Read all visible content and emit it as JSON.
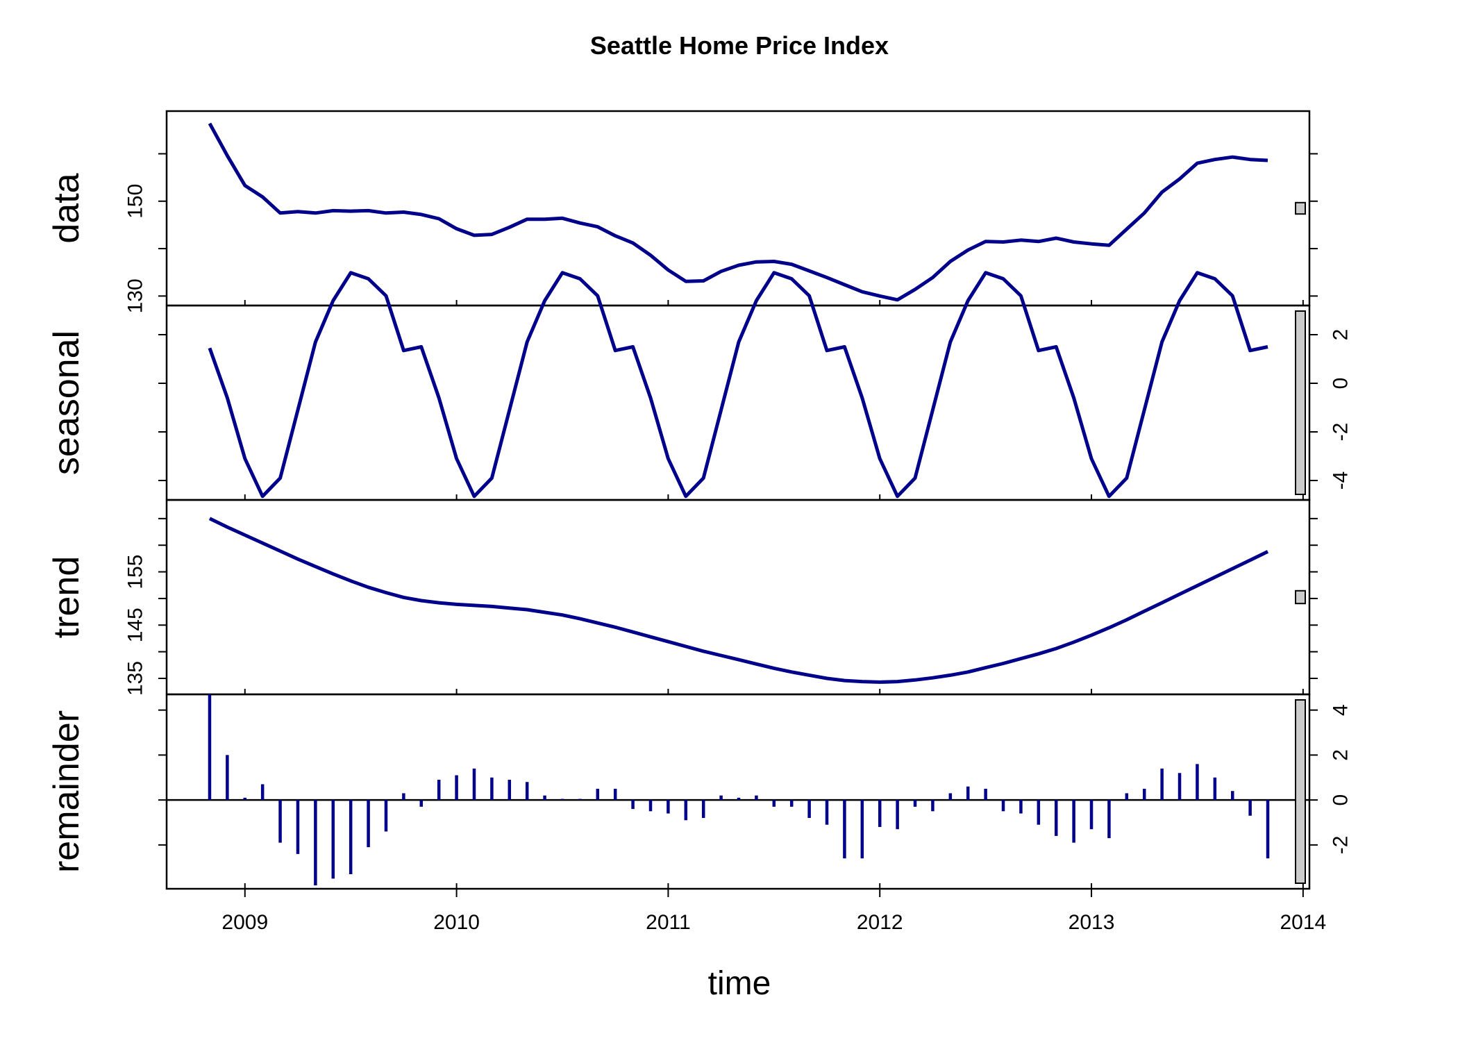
{
  "chart_data": {
    "type": "line",
    "title": "Seattle Home Price Index",
    "xlabel": "time",
    "xlim": [
      2008.63,
      2014.03
    ],
    "x_ticks": [
      "2009",
      "2010",
      "2011",
      "2012",
      "2013",
      "2014"
    ],
    "x_tick_values": [
      2009,
      2010,
      2011,
      2012,
      2013,
      2014
    ],
    "x_start": 2008.8333,
    "x_step": 0.0833333,
    "line_color": "#00008b",
    "range_bar_color": "#cccccc",
    "panels": [
      {
        "name": "data",
        "type": "line",
        "ylim": [
          128,
          169
        ],
        "y_ticks": [
          "130",
          "150"
        ],
        "y_tick_values": [
          130,
          150
        ],
        "y_minor_ticks": [
          130,
          140,
          150,
          160
        ],
        "axis_side": "left",
        "values": [
          166.4,
          159.6,
          153.3,
          150.9,
          147.5,
          147.8,
          147.5,
          148.0,
          147.9,
          148.0,
          147.5,
          147.7,
          147.2,
          146.3,
          144.2,
          142.8,
          143.0,
          144.5,
          146.2,
          146.2,
          146.4,
          145.4,
          144.6,
          142.7,
          141.2,
          138.6,
          135.5,
          133.1,
          133.2,
          135.2,
          136.5,
          137.2,
          137.3,
          136.7,
          135.3,
          133.9,
          132.4,
          130.9,
          130.0,
          129.2,
          131.4,
          133.9,
          137.3,
          139.7,
          141.5,
          141.4,
          141.8,
          141.5,
          142.2,
          141.4,
          141.0,
          140.7,
          144.1,
          147.5,
          151.9,
          154.7,
          158.0,
          158.8,
          159.3,
          158.8,
          158.6
        ]
      },
      {
        "name": "seasonal",
        "type": "line",
        "ylim": [
          -4.8,
          3.2
        ],
        "y_ticks": [
          "-4",
          "-2",
          "0",
          "2"
        ],
        "y_tick_values": [
          -4,
          -2,
          0,
          2
        ],
        "axis_side": "right",
        "values": [
          1.45,
          -0.6,
          -3.1,
          -4.65,
          -3.9,
          -1.1,
          1.7,
          3.4,
          4.55,
          4.3,
          3.6,
          1.35,
          1.5,
          -0.6,
          -3.1,
          -4.65,
          -3.9,
          -1.1,
          1.7,
          3.4,
          4.55,
          4.3,
          3.6,
          1.35,
          1.5,
          -0.6,
          -3.1,
          -4.65,
          -3.9,
          -1.1,
          1.7,
          3.4,
          4.55,
          4.3,
          3.6,
          1.35,
          1.5,
          -0.6,
          -3.1,
          -4.65,
          -3.9,
          -1.1,
          1.7,
          3.4,
          4.55,
          4.3,
          3.6,
          1.35,
          1.5,
          -0.6,
          -3.1,
          -4.65,
          -3.9,
          -1.1,
          1.7,
          3.4,
          4.55,
          4.3,
          3.6,
          1.35,
          1.5
        ]
      },
      {
        "name": "trend",
        "type": "line",
        "ylim": [
          132,
          168.5
        ],
        "y_ticks": [
          "135",
          "145",
          "155"
        ],
        "y_tick_values": [
          135,
          145,
          155
        ],
        "y_minor_ticks": [
          135,
          140,
          145,
          150,
          155,
          160,
          165
        ],
        "axis_side": "left",
        "values": [
          165.0,
          163.4,
          161.9,
          160.4,
          158.9,
          157.4,
          156.0,
          154.6,
          153.3,
          152.1,
          151.1,
          150.2,
          149.6,
          149.2,
          148.9,
          148.7,
          148.5,
          148.2,
          147.9,
          147.4,
          146.9,
          146.2,
          145.4,
          144.6,
          143.7,
          142.8,
          141.9,
          141.0,
          140.1,
          139.3,
          138.5,
          137.7,
          136.9,
          136.2,
          135.6,
          135.0,
          134.6,
          134.4,
          134.3,
          134.4,
          134.7,
          135.1,
          135.6,
          136.2,
          137.0,
          137.8,
          138.7,
          139.6,
          140.6,
          141.8,
          143.1,
          144.5,
          146.0,
          147.6,
          149.2,
          150.8,
          152.4,
          154.0,
          155.6,
          157.2,
          158.8
        ]
      },
      {
        "name": "remainder",
        "type": "bar",
        "ylim": [
          -3.95,
          4.7
        ],
        "y_ticks": [
          "-2",
          "0",
          "2",
          "4"
        ],
        "y_tick_values": [
          -2,
          0,
          2,
          4
        ],
        "axis_side": "right",
        "values": [
          4.7,
          2.0,
          0.1,
          0.7,
          -1.9,
          -2.4,
          -3.8,
          -3.5,
          -3.3,
          -2.1,
          -1.4,
          0.3,
          -0.3,
          0.9,
          1.1,
          1.4,
          1.0,
          0.9,
          0.8,
          0.2,
          0.05,
          0.05,
          0.5,
          0.5,
          -0.4,
          -0.5,
          -0.6,
          -0.9,
          -0.8,
          0.2,
          0.1,
          0.2,
          -0.3,
          -0.3,
          -0.8,
          -1.1,
          -2.6,
          -2.6,
          -1.2,
          -1.3,
          -0.3,
          -0.5,
          0.3,
          0.6,
          0.5,
          -0.5,
          -0.6,
          -1.1,
          -1.6,
          -1.9,
          -1.3,
          -1.7,
          0.3,
          0.5,
          1.4,
          1.2,
          1.6,
          1.0,
          0.4,
          -0.7,
          -2.6
        ]
      }
    ]
  }
}
